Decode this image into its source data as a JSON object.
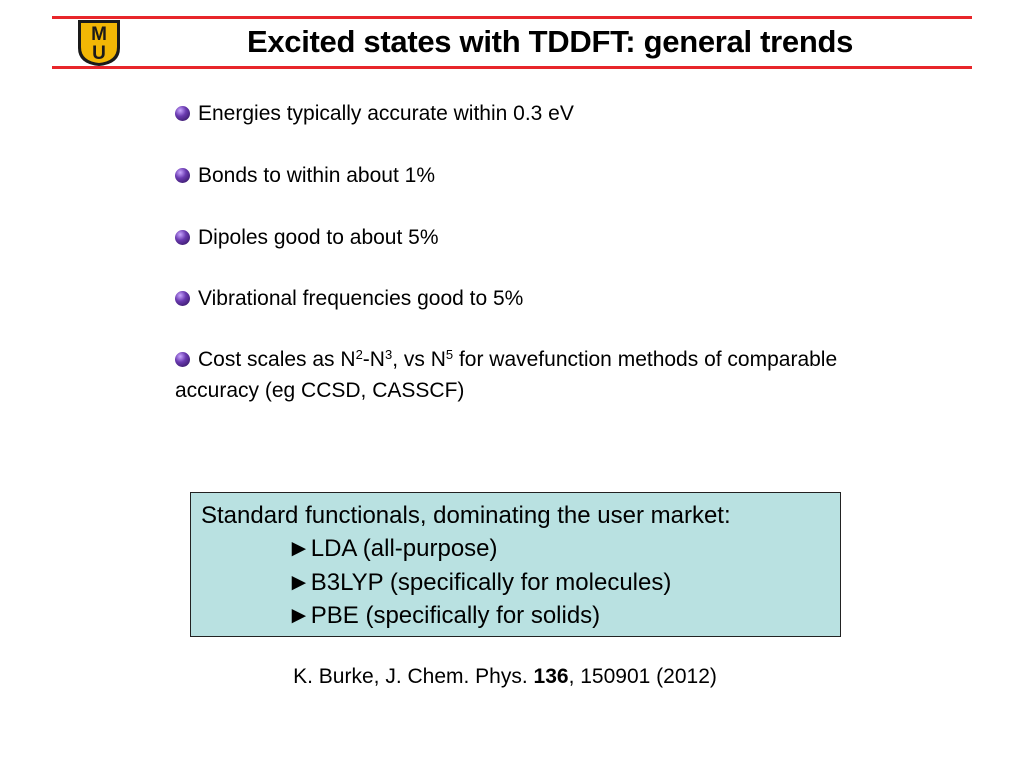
{
  "header": {
    "title": "Excited states with TDDFT: general trends",
    "logo": {
      "top": "M",
      "bottom": "U"
    }
  },
  "bullets": [
    {
      "segments": [
        "Energies typically accurate within 0.3 eV"
      ]
    },
    {
      "segments": [
        "Bonds to within about 1%"
      ]
    },
    {
      "segments": [
        "Dipoles good to about 5%"
      ]
    },
    {
      "segments": [
        "Vibrational frequencies good to 5%"
      ]
    },
    {
      "segments": [
        "Cost scales as N",
        "2",
        "-N",
        "3",
        ", vs N",
        "5",
        " for wavefunction methods of comparable accuracy (eg CCSD, CASSCF)"
      ]
    }
  ],
  "box": {
    "heading": "Standard functionals, dominating the user market:",
    "items": [
      "►LDA (all-purpose)",
      "►B3LYP (specifically for molecules)",
      "►PBE (specifically for solids)"
    ]
  },
  "reference": {
    "before": "K. Burke, J. Chem. Phys. ",
    "volume": "136",
    "after": ", 150901 (2012)"
  }
}
